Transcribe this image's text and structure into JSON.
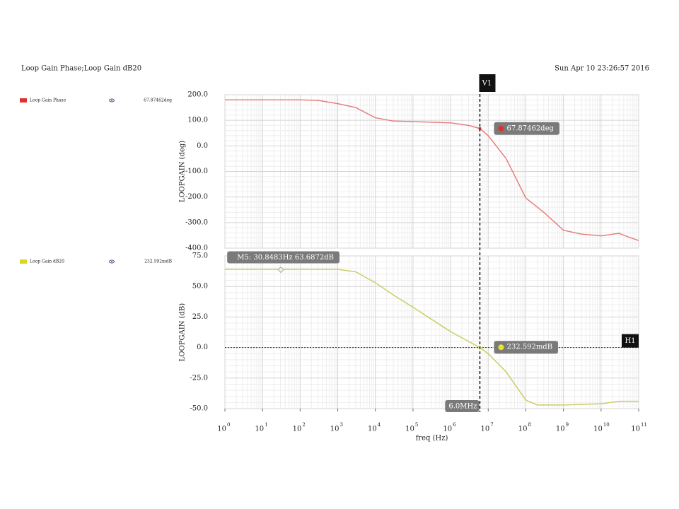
{
  "header": {
    "title": "Loop Gain Phase;Loop Gain dB20",
    "date": "Sun Apr 10 23:26:57 2016"
  },
  "cursor": {
    "name": "V1",
    "x": 6000000,
    "label": "6.0MHz"
  },
  "chart_data": [
    {
      "type": "line",
      "ylabel": "LOOPGAIN (deg)",
      "xscale": "log",
      "grid": true,
      "xlim": [
        1,
        100000000000
      ],
      "x": [
        1,
        10,
        100,
        300,
        1000,
        3000,
        10000,
        30000,
        100000,
        1000000,
        3000000,
        6000000,
        10000000,
        30000000,
        100000000,
        300000000,
        1000000000,
        3000000000,
        10000000000,
        30000000000,
        50000000000,
        100000000000
      ],
      "series": [
        {
          "name": "Loop Gain Phase",
          "color": "#e58080",
          "legend_color": "#e03030",
          "values": [
            180,
            180,
            180,
            178,
            165,
            150,
            110,
            97,
            95,
            90,
            80,
            68,
            40,
            -50,
            -204,
            -260,
            -330,
            -345,
            -352,
            -342,
            -355,
            -370
          ]
        }
      ],
      "ylim": [
        -400,
        200
      ],
      "yticks": [
        {
          "value": 200,
          "label": "200.0"
        },
        {
          "value": 100,
          "label": "100.0"
        },
        {
          "value": 0,
          "label": "0.0"
        },
        {
          "value": -100,
          "label": "-100.0"
        },
        {
          "value": -200,
          "label": "-200.0"
        },
        {
          "value": -300,
          "label": "-300.0"
        },
        {
          "value": -400,
          "label": "-400.0"
        }
      ],
      "marker": {
        "value": 67.87462,
        "label": "67.87462deg",
        "color": "#e03030"
      }
    },
    {
      "type": "line",
      "ylabel": "LOOPGAIN (dB)",
      "xlabel": "freq (Hz)",
      "xscale": "log",
      "grid": true,
      "xlim": [
        1,
        100000000000
      ],
      "xticks": [
        {
          "value": 1,
          "label": "10",
          "exp": "0"
        },
        {
          "value": 10,
          "label": "10",
          "exp": "1"
        },
        {
          "value": 100,
          "label": "10",
          "exp": "2"
        },
        {
          "value": 1000,
          "label": "10",
          "exp": "3"
        },
        {
          "value": 10000,
          "label": "10",
          "exp": "4"
        },
        {
          "value": 100000,
          "label": "10",
          "exp": "5"
        },
        {
          "value": 1000000,
          "label": "10",
          "exp": "6"
        },
        {
          "value": 10000000,
          "label": "10",
          "exp": "7"
        },
        {
          "value": 100000000,
          "label": "10",
          "exp": "8"
        },
        {
          "value": 1000000000,
          "label": "10",
          "exp": "9"
        },
        {
          "value": 10000000000,
          "label": "10",
          "exp": "10"
        },
        {
          "value": 100000000000,
          "label": "10",
          "exp": "11"
        }
      ],
      "x": [
        1,
        10,
        100,
        1000,
        3000,
        10000,
        30000,
        100000,
        1000000,
        6000000,
        10000000,
        30000000,
        100000000,
        200000000,
        300000000,
        1000000000,
        10000000000,
        30000000000,
        100000000000
      ],
      "series": [
        {
          "name": "Loop Gain dB20",
          "color": "#cccc66",
          "legend_color": "#d8d820",
          "values": [
            64,
            64,
            64,
            64,
            62,
            53,
            43,
            33,
            13,
            0,
            -5,
            -20,
            -43,
            -47,
            -47,
            -47,
            -46,
            -44,
            -44
          ]
        }
      ],
      "ylim": [
        -50,
        75
      ],
      "yticks": [
        {
          "value": 75,
          "label": "75.0"
        },
        {
          "value": 50,
          "label": "50.0"
        },
        {
          "value": 25,
          "label": "25.0"
        },
        {
          "value": 0,
          "label": "0.0"
        },
        {
          "value": -25,
          "label": "-25.0"
        },
        {
          "value": -50,
          "label": "-50.0"
        }
      ],
      "marker": {
        "value": 0.232592,
        "label": "232.592mdB",
        "color": "#e8e820"
      },
      "hline": {
        "name": "H1",
        "value": 0
      },
      "point_marker": {
        "label": "M5: 30.8483Hz 63.6872dB",
        "x": 30.8483,
        "y": 63.6872
      }
    }
  ]
}
